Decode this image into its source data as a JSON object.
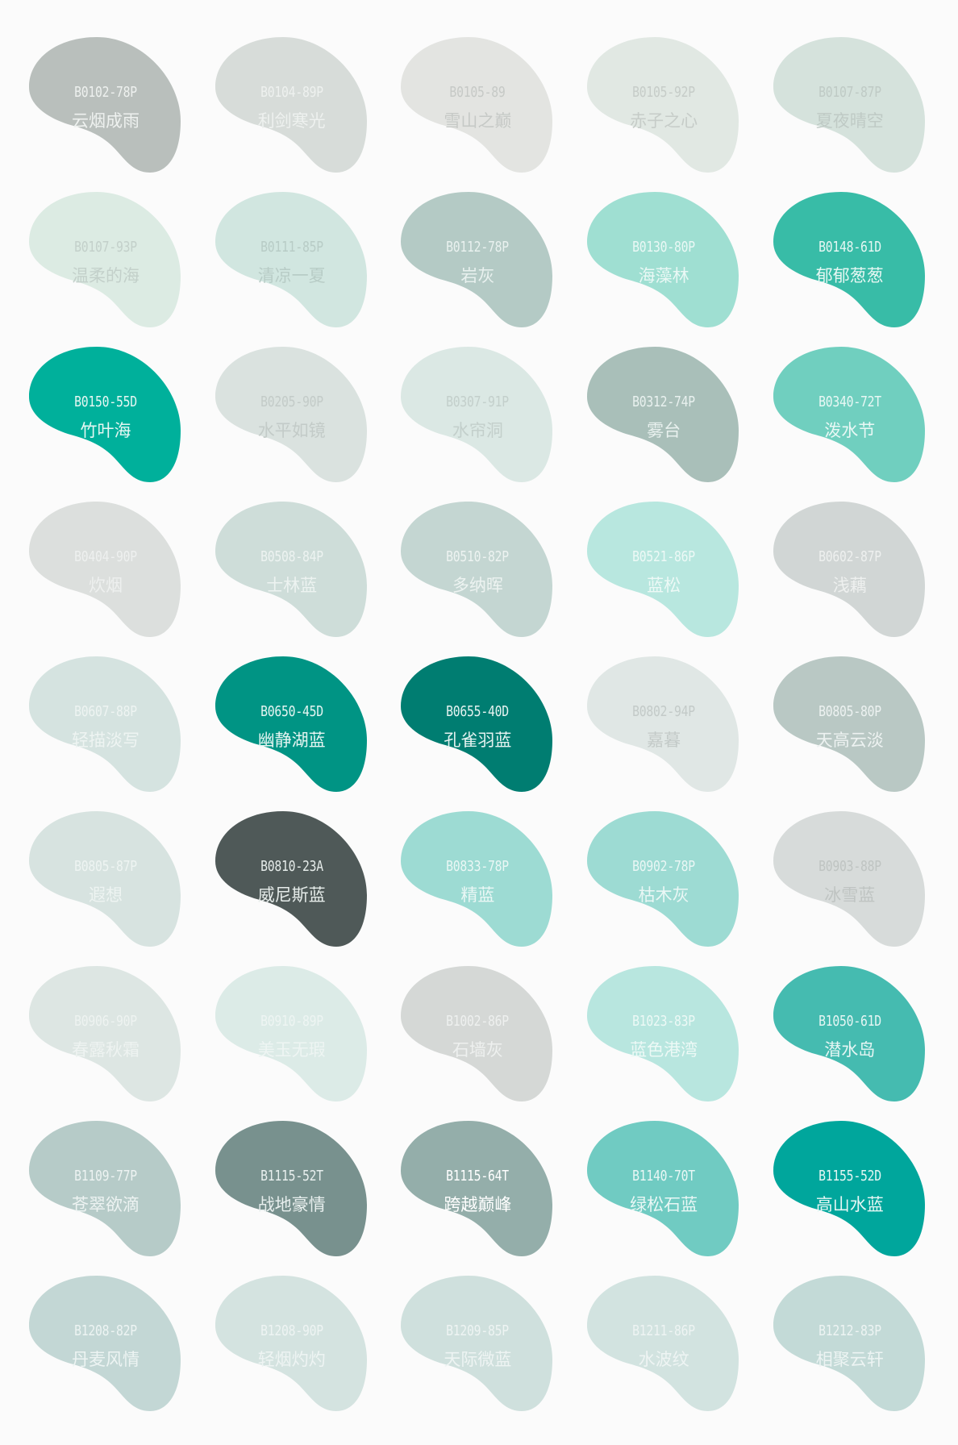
{
  "swatches": [
    {
      "code": "B0102-78P",
      "name": "云烟成雨",
      "color": "#b9bfbc",
      "text": "#eef1ef"
    },
    {
      "code": "B0104-89P",
      "name": "利剑寒光",
      "color": "#d7dcd9",
      "text": "#eef1ef"
    },
    {
      "code": "B0105-89",
      "name": "雪山之巅",
      "color": "#e3e4e1",
      "text": "#c6c9c6"
    },
    {
      "code": "B0105-92P",
      "name": "赤子之心",
      "color": "#e1e8e3",
      "text": "#c6ccc8"
    },
    {
      "code": "B0107-87P",
      "name": "夏夜晴空",
      "color": "#d5e2dc",
      "text": "#bfcac5"
    },
    {
      "code": "B0107-93P",
      "name": "温柔的海",
      "color": "#dcebe3",
      "text": "#c3d0ca"
    },
    {
      "code": "B0111-85P",
      "name": "清凉一夏",
      "color": "#d1e6e0",
      "text": "#b8ccc6"
    },
    {
      "code": "B0112-78P",
      "name": "岩灰",
      "color": "#b4cac5",
      "text": "#e9f1ef"
    },
    {
      "code": "B0130-80P",
      "name": "海藻林",
      "color": "#9fdfd2",
      "text": "#eaf8f5"
    },
    {
      "code": "B0148-61D",
      "name": "郁郁葱葱",
      "color": "#38bca7",
      "text": "#e6f7f3"
    },
    {
      "code": "B0150-55D",
      "name": "竹叶海",
      "color": "#00b09b",
      "text": "#e6f7f3"
    },
    {
      "code": "B0205-90P",
      "name": "水平如镜",
      "color": "#dae2df",
      "text": "#c3cbc8"
    },
    {
      "code": "B0307-91P",
      "name": "水帘洞",
      "color": "#dbe8e4",
      "text": "#c3cfcb"
    },
    {
      "code": "B0312-74P",
      "name": "雾台",
      "color": "#a9bfb9",
      "text": "#e9f1ef"
    },
    {
      "code": "B0340-72T",
      "name": "泼水节",
      "color": "#70cfbf",
      "text": "#e9f8f5"
    },
    {
      "code": "B0404-90P",
      "name": "炊烟",
      "color": "#dcdfdd",
      "text": "#eef0ef"
    },
    {
      "code": "B0508-84P",
      "name": "士林蓝",
      "color": "#ceddd9",
      "text": "#edf3f1"
    },
    {
      "code": "B0510-82P",
      "name": "多纳晖",
      "color": "#c4d6d2",
      "text": "#edf3f1"
    },
    {
      "code": "B0521-86P",
      "name": "蓝松",
      "color": "#b8e7df",
      "text": "#edf9f6"
    },
    {
      "code": "B0602-87P",
      "name": "浅藕",
      "color": "#d1d6d5",
      "text": "#eef0ef"
    },
    {
      "code": "B0607-88P",
      "name": "轻描淡写",
      "color": "#d5e3e0",
      "text": "#eef4f2"
    },
    {
      "code": "B0650-45D",
      "name": "幽静湖蓝",
      "color": "#009484",
      "text": "#e6f5f2"
    },
    {
      "code": "B0655-40D",
      "name": "孔雀羽蓝",
      "color": "#007d71",
      "text": "#e6f3f1"
    },
    {
      "code": "B0802-94P",
      "name": "嘉暮",
      "color": "#e0e7e5",
      "text": "#c3cac8"
    },
    {
      "code": "B0805-80P",
      "name": "天高云淡",
      "color": "#b9c8c4",
      "text": "#edf2f1"
    },
    {
      "code": "B0805-87P",
      "name": "遐想",
      "color": "#d7e3e0",
      "text": "#eef4f2"
    },
    {
      "code": "B0810-23A",
      "name": "威尼斯蓝",
      "color": "#4f5958",
      "text": "#e6ecea"
    },
    {
      "code": "B0833-78P",
      "name": "精蓝",
      "color": "#9ddbd3",
      "text": "#eaf7f5"
    },
    {
      "code": "B0902-78P",
      "name": "枯木灰",
      "color": "#9ddbd3",
      "text": "#eaf7f5"
    },
    {
      "code": "B0903-88P",
      "name": "冰雪蓝",
      "color": "#d7dbda",
      "text": "#bfc4c2"
    },
    {
      "code": "B0906-90P",
      "name": "春露秋霜",
      "color": "#dde6e3",
      "text": "#eef3f1"
    },
    {
      "code": "B0910-89P",
      "name": "美玉无瑕",
      "color": "#dcebe7",
      "text": "#eef5f3"
    },
    {
      "code": "B1002-86P",
      "name": "石墙灰",
      "color": "#d5d8d6",
      "text": "#eef0ef"
    },
    {
      "code": "B1023-83P",
      "name": "蓝色港湾",
      "color": "#b8e6df",
      "text": "#edf9f6"
    },
    {
      "code": "B1050-61D",
      "name": "潜水岛",
      "color": "#45bbb0",
      "text": "#e6f6f4"
    },
    {
      "code": "B1109-77P",
      "name": "苍翠欲滴",
      "color": "#b6cbc8",
      "text": "#edf3f2"
    },
    {
      "code": "B1115-52T",
      "name": "战地豪情",
      "color": "#78918e",
      "text": "#e8efee"
    },
    {
      "code": "B1115-64T",
      "name": "跨越巅峰",
      "color": "#94aeaa",
      "text": "#ffffff"
    },
    {
      "code": "B1140-70T",
      "name": "绿松石蓝",
      "color": "#70cbc2",
      "text": "#e9f7f5"
    },
    {
      "code": "B1155-52D",
      "name": "高山水蓝",
      "color": "#00a69c",
      "text": "#e6f6f4"
    },
    {
      "code": "B1208-82P",
      "name": "丹麦风情",
      "color": "#c3d7d5",
      "text": "#edf4f3"
    },
    {
      "code": "B1208-90P",
      "name": "轻烟灼灼",
      "color": "#d4e3e0",
      "text": "#eef4f3"
    },
    {
      "code": "B1209-85P",
      "name": "天际微蓝",
      "color": "#cfe0dd",
      "text": "#eef4f3"
    },
    {
      "code": "B1211-86P",
      "name": "水波纹",
      "color": "#d2e3e0",
      "text": "#eef4f3"
    },
    {
      "code": "B1212-83P",
      "name": "相聚云轩",
      "color": "#c3dad7",
      "text": "#edf4f3"
    }
  ]
}
